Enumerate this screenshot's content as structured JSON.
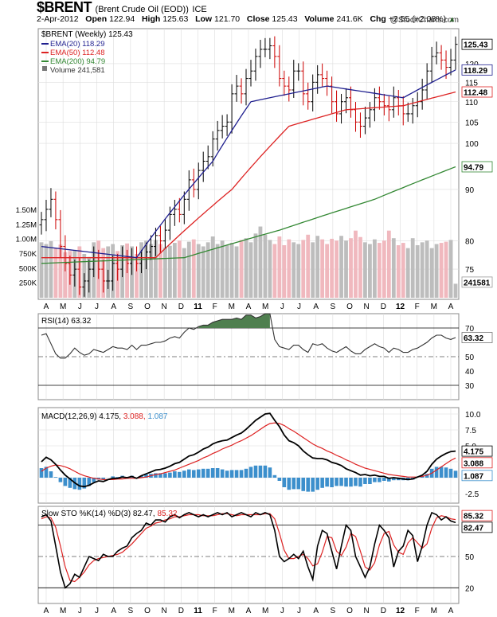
{
  "header": {
    "symbol": "$BRENT",
    "description": "(Brent Crude Oil (EOD))",
    "exchange": "ICE",
    "date": "2-Apr-2012",
    "open_label": "Open",
    "open": "122.94",
    "high_label": "High",
    "high": "125.63",
    "low_label": "Low",
    "low": "121.70",
    "close_label": "Close",
    "close": "125.43",
    "volume_label": "Volume",
    "volume": "241.6K",
    "chg_label": "Chg",
    "chg": "+2.55 (+2.08%)",
    "direction_icon": "up-triangle-icon",
    "brand": "@StockCharts.com"
  },
  "colors": {
    "price_bar": "#000000",
    "price_bar_down": "#cc0000",
    "ema20": "#1f1f8f",
    "ema50": "#dd2222",
    "ema200": "#338833",
    "volume_up": "#bdbdbd",
    "volume_down": "#f0b8be",
    "rsi_fill": "#4f7f4f",
    "macd": "#000000",
    "macd_signal": "#dd2222",
    "macd_hist": "#3c8fcc",
    "sto_k": "#000000",
    "sto_d": "#dd2222",
    "grid": "#dddddd"
  },
  "chart_data": [
    {
      "type": "ohlc",
      "title": "$BRENT (Weekly) 125.43",
      "legend": [
        {
          "name": "EMA(20) 118.29",
          "color": "#1f1f8f"
        },
        {
          "name": "EMA(50) 112.48",
          "color": "#dd2222"
        },
        {
          "name": "EMA(200) 94.79",
          "color": "#338833"
        },
        {
          "name": "Volume 241,581",
          "color": "#888888"
        }
      ],
      "legend_placement": "top-left",
      "y_scale": "log",
      "ylim": [
        70,
        130
      ],
      "yticks": [
        75,
        80,
        90,
        100,
        105,
        110,
        115,
        120
      ],
      "last_value_labels": [
        "125.43",
        "118.29",
        "112.48",
        "94.79"
      ],
      "x_labels": [
        "A",
        "M",
        "J",
        "J",
        "A",
        "S",
        "O",
        "N",
        "D",
        "11",
        "F",
        "M",
        "A",
        "M",
        "J",
        "J",
        "A",
        "S",
        "O",
        "N",
        "D",
        "12",
        "F",
        "M",
        "A"
      ],
      "x_label_bold": [
        "11",
        "12"
      ],
      "close": [
        84,
        86,
        88,
        84,
        79,
        76,
        74,
        75,
        72,
        73,
        75,
        77,
        75,
        73,
        73,
        76,
        75,
        77,
        76,
        77,
        76,
        77,
        78,
        79,
        81,
        80,
        82,
        85,
        86,
        85,
        88,
        92,
        90,
        94,
        96,
        97,
        101,
        103,
        104,
        105,
        112,
        114,
        112,
        116,
        118,
        122,
        124,
        124,
        125,
        122,
        116,
        114,
        113,
        118,
        118,
        112,
        110,
        115,
        117,
        116,
        114,
        110,
        107,
        110,
        111,
        108,
        105,
        104,
        106,
        108,
        111,
        110,
        109,
        108,
        111,
        109,
        107,
        107,
        109,
        110,
        113,
        118,
        122,
        123,
        121,
        119,
        121,
        125.43
      ],
      "ema_legend": [
        "EMA(20)",
        "EMA(50)",
        "EMA(200)"
      ],
      "ema20_keypoints": [
        [
          0,
          79
        ],
        [
          20,
          77
        ],
        [
          36,
          96
        ],
        [
          44,
          110
        ],
        [
          60,
          114
        ],
        [
          76,
          111
        ],
        [
          87,
          118.29
        ]
      ],
      "ema50_keypoints": [
        [
          0,
          77
        ],
        [
          24,
          77
        ],
        [
          40,
          90
        ],
        [
          52,
          104
        ],
        [
          64,
          108
        ],
        [
          76,
          109
        ],
        [
          87,
          112.48
        ]
      ],
      "ema200_keypoints": [
        [
          0,
          76
        ],
        [
          30,
          77
        ],
        [
          50,
          82
        ],
        [
          70,
          88
        ],
        [
          87,
          94.79
        ]
      ],
      "volume_axis": [
        "1.50M",
        "1.25M",
        "1.00M",
        "750K",
        "500K",
        "250K"
      ],
      "volume_last_label": "241581",
      "volume": [
        0.95,
        0.92,
        0.97,
        0.85,
        0.91,
        0.78,
        0.8,
        0.82,
        0.88,
        0.75,
        0.7,
        0.95,
        0.98,
        0.85,
        0.88,
        0.92,
        0.8,
        0.9,
        0.93,
        0.88,
        0.75,
        0.95,
        0.98,
        0.92,
        0.99,
        0.92,
        0.86,
        0.89,
        0.94,
        0.98,
        0.85,
        0.96,
        1.0,
        0.92,
        0.88,
        0.95,
        1.05,
        0.92,
        0.98,
        0.9,
        0.94,
        0.88,
        0.99,
        1.02,
        0.95,
        1.1,
        1.22,
        1.08,
        0.99,
        0.92,
        1.05,
        0.9,
        1.0,
        0.95,
        0.92,
        0.99,
        1.08,
        0.95,
        1.06,
        1.0,
        0.92,
        1.01,
        0.98,
        1.06,
        0.98,
        1.02,
        1.15,
        1.04,
        0.95,
        0.92,
        1.0,
        0.94,
        0.98,
        1.15,
        1.02,
        0.9,
        0.94,
        0.85,
        1.02,
        0.9,
        0.95,
        0.98,
        0.85,
        0.92,
        0.94,
        0.96,
        0.99,
        0.24
      ]
    },
    {
      "type": "line",
      "title": "RSI(14) 63.32",
      "ylim": [
        20,
        80
      ],
      "yticks": [
        70,
        50,
        40,
        30
      ],
      "last_label": "63.32",
      "values": [
        65,
        66,
        59,
        52,
        49,
        49,
        52,
        56,
        53,
        51,
        52,
        55,
        54,
        53,
        55,
        57,
        56,
        56,
        55,
        58,
        55,
        58,
        58,
        59,
        60,
        60,
        61,
        63,
        64,
        63,
        67,
        70,
        69,
        71,
        72,
        72,
        74,
        75,
        76,
        76,
        76,
        77,
        76,
        79,
        79,
        77,
        78,
        80,
        80,
        62,
        57,
        56,
        55,
        58,
        58,
        55,
        53,
        59,
        58,
        59,
        56,
        54,
        53,
        55,
        57,
        54,
        52,
        52,
        55,
        57,
        59,
        57,
        56,
        53,
        56,
        55,
        53,
        53,
        55,
        56,
        58,
        60,
        63,
        65,
        65,
        63,
        62,
        63.32
      ]
    },
    {
      "type": "line",
      "title": "MACD(12,26,9)",
      "series_values": [
        "4.175",
        "3.088",
        "1.087"
      ],
      "ylim": [
        -4,
        11
      ],
      "yticks": [
        10.0,
        7.5,
        5.0,
        2.5,
        0.0,
        -2.5
      ],
      "last_labels": [
        "4.175",
        "3.088",
        "1.087"
      ],
      "macd": [
        2.5,
        3.2,
        2.8,
        2.1,
        1.2,
        0.4,
        -0.2,
        -0.8,
        -1.3,
        -1.4,
        -1.2,
        -0.8,
        -0.5,
        -0.6,
        -0.3,
        -0.1,
        -0.1,
        0.1,
        0.0,
        0.2,
        -0.1,
        0.3,
        0.6,
        0.9,
        1.2,
        1.3,
        1.5,
        1.8,
        2.2,
        2.4,
        2.9,
        3.4,
        3.6,
        4.0,
        4.5,
        4.8,
        5.3,
        5.6,
        5.8,
        5.9,
        6.3,
        6.7,
        7.0,
        7.6,
        8.3,
        9.0,
        9.5,
        10.0,
        10.1,
        9.0,
        8.0,
        6.7,
        5.8,
        5.5,
        5.0,
        4.2,
        3.6,
        3.1,
        3.0,
        3.0,
        2.8,
        2.4,
        2.2,
        1.9,
        1.4,
        1.1,
        0.8,
        0.4,
        0.5,
        0.3,
        0.4,
        0.2,
        0.2,
        -0.1,
        0.0,
        -0.1,
        -0.2,
        -0.3,
        -0.2,
        0.1,
        0.4,
        1.0,
        2.1,
        2.9,
        3.4,
        3.8,
        4.1,
        4.175
      ],
      "signal": [
        1.0,
        1.5,
        1.8,
        2.0,
        1.9,
        1.7,
        1.4,
        1.0,
        0.6,
        0.3,
        0.1,
        -0.1,
        -0.2,
        -0.3,
        -0.3,
        -0.3,
        -0.2,
        -0.2,
        -0.1,
        -0.1,
        -0.1,
        0.0,
        0.1,
        0.3,
        0.5,
        0.6,
        0.8,
        1.0,
        1.2,
        1.5,
        1.8,
        2.1,
        2.4,
        2.7,
        3.1,
        3.4,
        3.8,
        4.1,
        4.5,
        4.8,
        5.1,
        5.5,
        5.8,
        6.2,
        6.6,
        7.1,
        7.6,
        8.1,
        8.5,
        8.6,
        8.5,
        8.2,
        7.7,
        7.3,
        6.8,
        6.3,
        5.8,
        5.3,
        4.9,
        4.6,
        4.2,
        3.9,
        3.5,
        3.2,
        2.8,
        2.5,
        2.1,
        1.8,
        1.5,
        1.3,
        1.1,
        0.9,
        0.7,
        0.5,
        0.4,
        0.3,
        0.2,
        0.1,
        0.1,
        0.1,
        0.2,
        0.4,
        0.7,
        1.2,
        1.7,
        2.2,
        2.7,
        3.088
      ]
    },
    {
      "type": "line",
      "title": "Slow STO %K(14) %D(3)",
      "series_values": [
        "82.47",
        "85.32"
      ],
      "ylim": [
        5,
        98
      ],
      "yticks": [
        80,
        50,
        20
      ],
      "last_labels": [
        "85.32",
        "82.47"
      ],
      "k": [
        88,
        90,
        84,
        60,
        35,
        20,
        24,
        33,
        30,
        40,
        50,
        48,
        46,
        52,
        50,
        50,
        55,
        58,
        60,
        68,
        72,
        75,
        82,
        80,
        85,
        85,
        83,
        88,
        90,
        87,
        90,
        92,
        90,
        88,
        90,
        88,
        90,
        92,
        90,
        92,
        88,
        90,
        92,
        90,
        88,
        92,
        90,
        92,
        90,
        75,
        50,
        45,
        48,
        52,
        48,
        55,
        40,
        28,
        60,
        75,
        72,
        55,
        38,
        60,
        80,
        75,
        50,
        40,
        30,
        40,
        62,
        80,
        75,
        68,
        40,
        55,
        60,
        75,
        70,
        45,
        60,
        80,
        92,
        90,
        85,
        88,
        84,
        82.47
      ],
      "d": [
        86,
        88,
        87,
        78,
        60,
        40,
        27,
        26,
        30,
        35,
        42,
        46,
        48,
        49,
        50,
        51,
        52,
        54,
        58,
        62,
        67,
        72,
        77,
        79,
        82,
        83,
        85,
        86,
        88,
        88,
        89,
        90,
        90,
        90,
        89,
        89,
        89,
        90,
        91,
        91,
        90,
        89,
        90,
        90,
        90,
        90,
        90,
        91,
        91,
        86,
        72,
        56,
        48,
        48,
        50,
        52,
        48,
        41,
        43,
        54,
        69,
        68,
        55,
        51,
        59,
        72,
        69,
        55,
        40,
        37,
        44,
        61,
        72,
        74,
        61,
        54,
        52,
        63,
        68,
        63,
        58,
        62,
        77,
        87,
        89,
        88,
        86,
        85.32
      ]
    }
  ]
}
